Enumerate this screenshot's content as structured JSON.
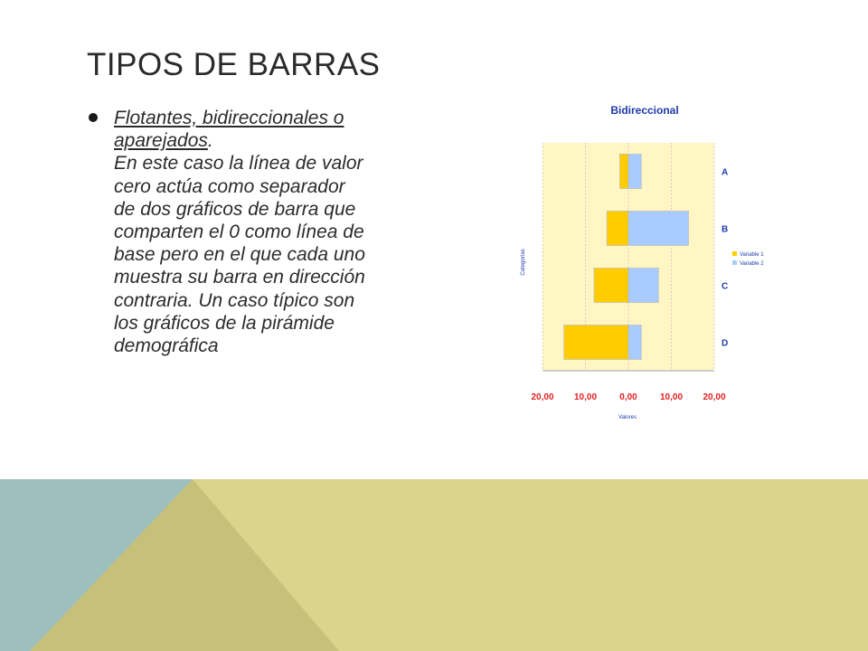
{
  "slide": {
    "title": "TIPOS DE BARRAS",
    "bullet": {
      "link_text": "Flotantes, bidireccionales o aparejados",
      "after_link": ".",
      "description": "En este caso la línea de valor cero actúa como separador de dos gráficos de barra que comparten el 0 como línea de base pero en el que cada uno muestra su barra en dirección contraria. Un caso típico son los gráficos de la pirámide demográfica"
    }
  },
  "colors": {
    "title_text": "#2b2b2b",
    "plot_background": "#fff6c4",
    "series_1": "#ffcc00",
    "series_2": "#a8ccff",
    "tick_red": "#e02020",
    "label_blue": "#1c3aa8",
    "footer_teal": "#9dbfbd",
    "footer_olive": "#c7c07a",
    "footer_yellow": "#dbd48b"
  },
  "chart_data": {
    "type": "bar",
    "orientation": "horizontal",
    "title": "Bidireccional",
    "xlabel": "Valores",
    "ylabel": "Categorías",
    "categories": [
      "A",
      "B",
      "C",
      "D"
    ],
    "series": [
      {
        "name": "Variable 1",
        "values": [
          -2,
          -5,
          -8,
          -15
        ]
      },
      {
        "name": "Variable 2",
        "values": [
          3,
          14,
          7,
          3
        ]
      }
    ],
    "xlim": [
      -20,
      20
    ],
    "xticks": [
      -20,
      -10,
      0,
      10,
      20
    ],
    "xtick_labels": [
      "20,00",
      "10,00",
      "0,00",
      "10,00",
      "20,00"
    ],
    "grid": true,
    "legend": "right"
  }
}
